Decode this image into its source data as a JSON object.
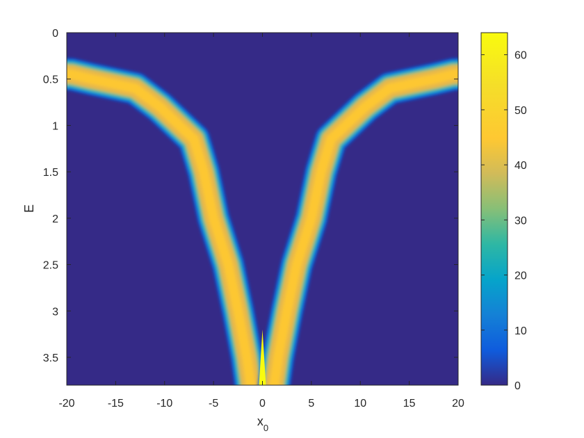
{
  "chart_data": {
    "type": "heatmap",
    "title": "",
    "xlabel": "x",
    "xlabel_subscript": "0",
    "ylabel": "E",
    "xlim": [
      -20,
      20
    ],
    "ylim": [
      0,
      3.8
    ],
    "y_reversed": true,
    "x_ticks": [
      "-20",
      "-15",
      "-10",
      "-5",
      "0",
      "5",
      "10",
      "15",
      "20"
    ],
    "y_ticks": [
      "0",
      "0.5",
      "1",
      "1.5",
      "2",
      "2.5",
      "3",
      "3.5"
    ],
    "colorbar": {
      "colormap": "parula",
      "clim": [
        0,
        64
      ],
      "ticks": [
        "0",
        "10",
        "20",
        "30",
        "40",
        "50",
        "60"
      ]
    },
    "grid": false,
    "band_centerline": [
      {
        "E": 0.45,
        "x": 19.5
      },
      {
        "E": 0.5,
        "x": 17.5
      },
      {
        "E": 0.6,
        "x": 13
      },
      {
        "E": 0.8,
        "x": 10.5
      },
      {
        "E": 1.0,
        "x": 8.5
      },
      {
        "E": 1.15,
        "x": 7
      },
      {
        "E": 1.5,
        "x": 6
      },
      {
        "E": 2.0,
        "x": 5
      },
      {
        "E": 2.5,
        "x": 3.5
      },
      {
        "E": 3.0,
        "x": 2.5
      },
      {
        "E": 3.5,
        "x": 1.6
      },
      {
        "E": 3.8,
        "x": 1.2
      }
    ],
    "band_peak_value": 56,
    "center_spike": {
      "x": 0,
      "E_start": 3.2,
      "E_end": 3.8,
      "value": 64
    }
  }
}
